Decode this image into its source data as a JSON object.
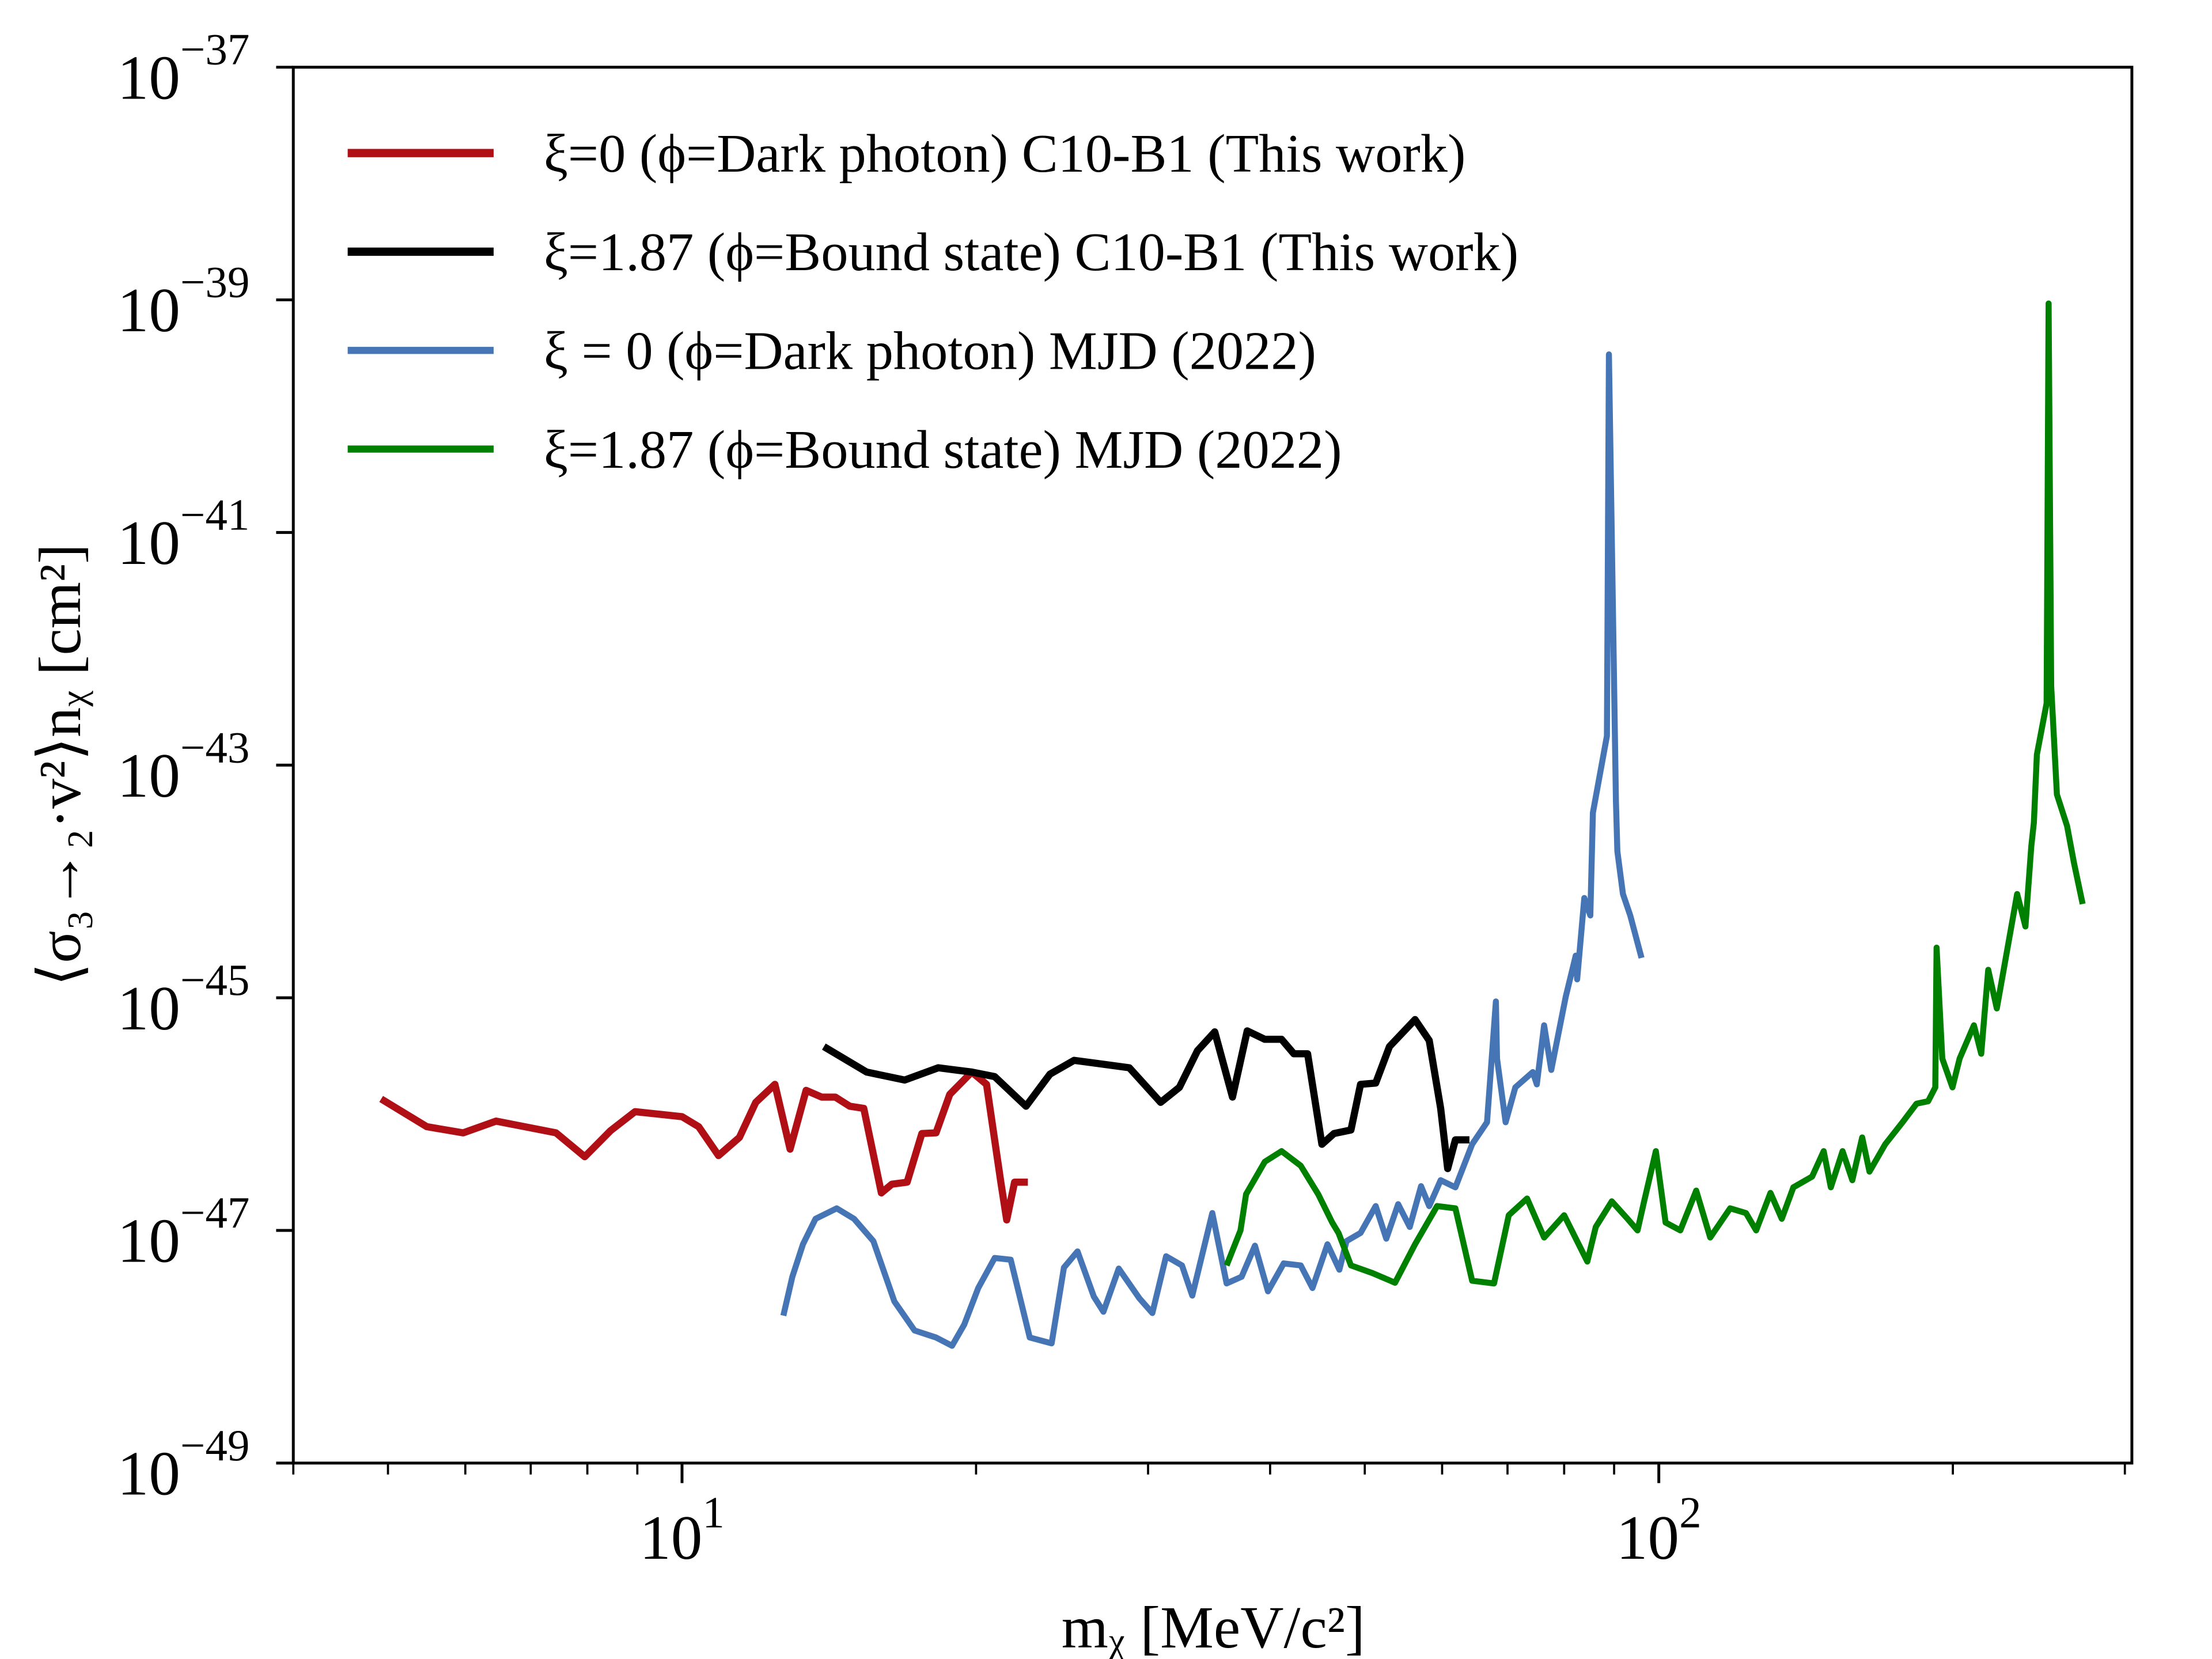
{
  "chart_data": {
    "type": "line",
    "title": "",
    "xlabel": "mᵪ [MeV/c²]",
    "ylabel": "⟨σ₃→₂·v²⟩nᵪ [cm²]",
    "xscale": "log",
    "yscale": "log",
    "xlim": [
      4,
      305
    ],
    "ylim": [
      1e-49,
      1e-37
    ],
    "x_ticks": [
      {
        "base": "10",
        "exp": "1",
        "value": 10
      },
      {
        "base": "10",
        "exp": "2",
        "value": 100
      }
    ],
    "y_ticks": [
      {
        "base": "10",
        "exp": "−37",
        "value": -37
      },
      {
        "base": "10",
        "exp": "−39",
        "value": -39
      },
      {
        "base": "10",
        "exp": "−41",
        "value": -41
      },
      {
        "base": "10",
        "exp": "−43",
        "value": -43
      },
      {
        "base": "10",
        "exp": "−45",
        "value": -45
      },
      {
        "base": "10",
        "exp": "−47",
        "value": -47
      },
      {
        "base": "10",
        "exp": "−49",
        "value": -49
      }
    ],
    "grid": false,
    "legend_position": "top-left",
    "series": [
      {
        "name": "ξ=0 (ϕ=Dark photon) C10-B1 (This work)",
        "color": "#b01015",
        "x": [
          4.92,
          5.48,
          5.97,
          6.45,
          7.43,
          7.95,
          8.45,
          8.95,
          10,
          10.4,
          10.9,
          11.45,
          11.9,
          12.45,
          12.9,
          13.4,
          13.9,
          14.35,
          14.85,
          15.35,
          16.0,
          16.4,
          17.0,
          17.6,
          18.2,
          18.8,
          19.8,
          20.5,
          21.2,
          21.5,
          21.9,
          22.6
        ],
        "y": [
          1.35e-46,
          7.8e-47,
          6.9e-47,
          8.7e-47,
          6.9e-47,
          4.3e-47,
          7.2e-47,
          1.05e-46,
          9.5e-47,
          7.8e-47,
          4.4e-47,
          6.3e-47,
          1.26e-46,
          1.8e-46,
          5e-47,
          1.6e-46,
          1.4e-46,
          1.4e-46,
          1.17e-46,
          1.12e-46,
          2.1e-47,
          2.5e-47,
          2.6e-47,
          6.8e-47,
          6.9e-47,
          1.48e-46,
          2.3e-46,
          1.8e-46,
          2.6e-47,
          1.23e-47,
          2.6e-47,
          2.6e-47
        ]
      },
      {
        "name": "ξ=1.87 (ϕ=Bound state) C10-B1 (This work)",
        "color": "#000000",
        "x": [
          13.97,
          15.45,
          16.9,
          18.3,
          19.8,
          20.9,
          22.5,
          23.8,
          25.2,
          28.7,
          30.9,
          32.3,
          33.7,
          35.1,
          36.6,
          37.9,
          39.5,
          41.1,
          42.3,
          43.7,
          45.2,
          46.5,
          48.4,
          49.5,
          51.3,
          53.0,
          56.3,
          58.2,
          59.8,
          60.8,
          61.9,
          64.0
        ],
        "y": [
          3.8e-46,
          2.3e-46,
          1.96e-46,
          2.5e-46,
          2.3e-46,
          2.1e-46,
          1.17e-46,
          2.2e-46,
          2.9e-46,
          2.5e-46,
          1.26e-46,
          1.7e-46,
          3.5e-46,
          5.1e-46,
          1.4e-46,
          5.2e-46,
          4.4e-46,
          4.4e-46,
          3.3e-46,
          3.3e-46,
          5.5e-47,
          6.8e-47,
          7.3e-47,
          1.8e-46,
          1.85e-46,
          3.8e-46,
          6.5e-46,
          4.3e-46,
          1.12e-46,
          3.4e-47,
          6e-47,
          6e-47
        ]
      },
      {
        "name": "ξ = 0 (ϕ=Dark photon) MJD (2022)",
        "color": "#4575b4",
        "x": [
          12.7,
          12.97,
          13.3,
          13.7,
          14.4,
          15.0,
          15.7,
          16.5,
          17.3,
          18.2,
          18.9,
          19.45,
          20.1,
          20.9,
          21.7,
          22.7,
          23.9,
          24.6,
          25.4,
          26.4,
          27.0,
          28.0,
          29.4,
          30.3,
          31.3,
          32.5,
          33.3,
          34.9,
          36.1,
          37.4,
          38.6,
          39.8,
          41.3,
          43.0,
          44.2,
          45.8,
          47.1,
          47.9,
          49.5,
          51.3,
          52.6,
          54.1,
          55.6,
          57.1,
          58.2,
          59.8,
          61.9,
          64.4,
          66.7,
          68.1,
          68.3,
          69.7,
          71.3,
          74.3,
          75.0,
          76.3,
          77.6,
          80.3,
          82.2,
          82.5,
          83.9,
          85.1,
          85.6,
          88.5,
          88.9,
          90.4,
          90.7,
          91.9,
          93.5,
          96.0
        ],
        "y": [
          1.85e-48,
          4e-48,
          7.6e-48,
          1.26e-47,
          1.55e-47,
          1.26e-47,
          8.1e-48,
          2.45e-48,
          1.38e-48,
          1.2e-48,
          1.02e-48,
          1.55e-48,
          3.2e-48,
          5.8e-48,
          5.6e-48,
          1.2e-48,
          1.07e-48,
          4.8e-48,
          6.6e-48,
          2.7e-48,
          2e-48,
          4.7e-48,
          2.6e-48,
          1.95e-48,
          6e-48,
          5e-48,
          2.75e-48,
          1.41e-47,
          3.5e-48,
          4e-48,
          7.4e-48,
          3e-48,
          5.2e-48,
          5e-48,
          3.2e-48,
          7.6e-48,
          4.6e-48,
          8.1e-48,
          9.5e-48,
          1.62e-47,
          8.5e-48,
          1.68e-47,
          1.07e-47,
          2.4e-47,
          1.62e-47,
          2.7e-47,
          2.35e-47,
          5.5e-47,
          8.5e-47,
          9.3e-46,
          3e-46,
          8.5e-47,
          1.7e-46,
          2.3e-46,
          1.8e-46,
          5.8e-46,
          2.4e-46,
          1.02e-45,
          2.3e-45,
          1.44e-45,
          7.2e-45,
          5.1e-45,
          3.9e-44,
          1.78e-43,
          3.4e-40,
          4.9e-44,
          1.82e-44,
          7.8e-45,
          5.1e-45,
          2.2e-45
        ]
      },
      {
        "name": "ξ=1.87 (ϕ=Bound state) MJD (2022)",
        "color": "#008000",
        "x": [
          36.1,
          37.3,
          37.8,
          39.5,
          41.1,
          43.0,
          44.8,
          46.3,
          47.0,
          48.4,
          50.9,
          53.7,
          56.3,
          59.3,
          61.9,
          64.4,
          67.8,
          70.2,
          73.3,
          76.3,
          80.0,
          84.5,
          86.2,
          89.5,
          92.9,
          95.1,
          96.6,
          99.3,
          101.6,
          105.2,
          109.2,
          112.9,
          118.3,
          122.8,
          125.8,
          130.1,
          133.6,
          137.3,
          143.5,
          147.5,
          150.0,
          154.2,
          157.8,
          161.5,
          164.3,
          170.5,
          177.6,
          183.6,
          188.7,
          191.9,
          192.5,
          195.1,
          199.8,
          203.2,
          210.2,
          213.8,
          217.4,
          221.8,
          232.7,
          237.3,
          240.6,
          242.1,
          243.8,
          249.5,
          250.6,
          252.2,
          255.6,
          261.8,
          266.1,
          271.6
        ],
        "y": [
          5e-48,
          1e-47,
          2.05e-47,
          3.9e-47,
          4.8e-47,
          3.6e-47,
          2.05e-47,
          1.17e-47,
          9.5e-48,
          5e-48,
          4.3e-48,
          3.55e-48,
          7.6e-48,
          1.62e-47,
          1.55e-47,
          3.7e-48,
          3.5e-48,
          1.35e-47,
          1.88e-47,
          8.7e-48,
          1.35e-47,
          5.4e-48,
          1.07e-47,
          1.78e-47,
          1.26e-47,
          1e-47,
          1.78e-47,
          4.8e-47,
          1.17e-47,
          1e-47,
          2.2e-47,
          8.7e-48,
          1.55e-47,
          1.41e-47,
          1e-47,
          2.1e-47,
          1.26e-47,
          2.35e-47,
          2.9e-47,
          4.8e-47,
          2.35e-47,
          4.8e-47,
          2.7e-47,
          6.3e-47,
          3.2e-47,
          5.5e-47,
          8.5e-47,
          1.23e-46,
          1.29e-46,
          1.7e-46,
          2.7e-45,
          3e-46,
          1.7e-46,
          3e-46,
          5.8e-46,
          3.3e-46,
          1.74e-45,
          8.1e-46,
          7.8e-45,
          4.1e-45,
          2e-44,
          3.2e-44,
          1.23e-43,
          3.4e-43,
          9.3e-40,
          4.8e-43,
          5.6e-44,
          3e-44,
          1.45e-44,
          6.4e-45
        ]
      }
    ]
  }
}
